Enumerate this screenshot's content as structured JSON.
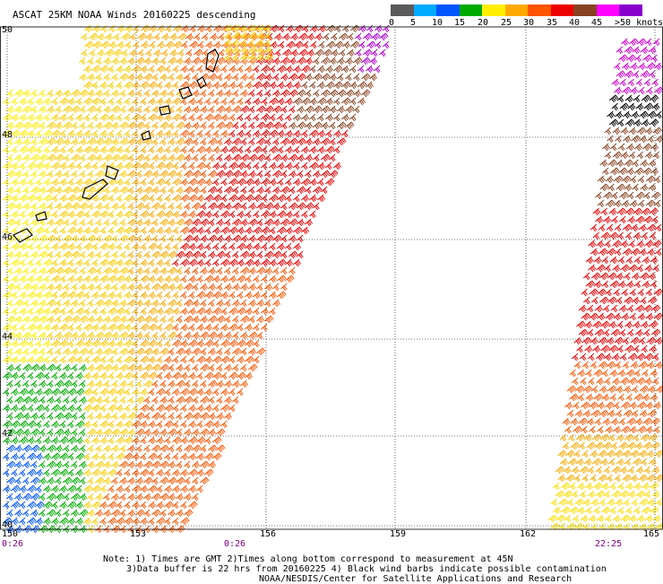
{
  "title": "ASCAT 25KM NOAA Winds 20160225 descending",
  "legend": {
    "labels": [
      "0",
      "5",
      "10",
      "15",
      "20",
      "25",
      "30",
      "35",
      "40",
      "45",
      ">50 knots"
    ],
    "colors": [
      "#5a5a5a",
      "#00aaff",
      "#0055ff",
      "#0000cc",
      "#00aa00",
      "#ffee00",
      "#ffaa00",
      "#ff5500",
      "#ee0000",
      "#884422",
      "#ff00ff",
      "#8800cc"
    ]
  },
  "axes": {
    "lat_labels": [
      "50",
      "48",
      "46",
      "44",
      "42",
      "40"
    ],
    "lon_labels": [
      "150",
      "153",
      "156",
      "159",
      "162",
      "165"
    ]
  },
  "times": [
    "0:26",
    "0:26",
    "22:25"
  ],
  "notes": [
    "Note: 1) Times are GMT 2)Times along bottom correspond to measurement at 45N",
    "3)Data buffer is 22 hrs from 20160225 4) Black wind barbs indicate possible contamination",
    "NOAA/NESDIS/Center for Satellite Applications and Research"
  ]
}
